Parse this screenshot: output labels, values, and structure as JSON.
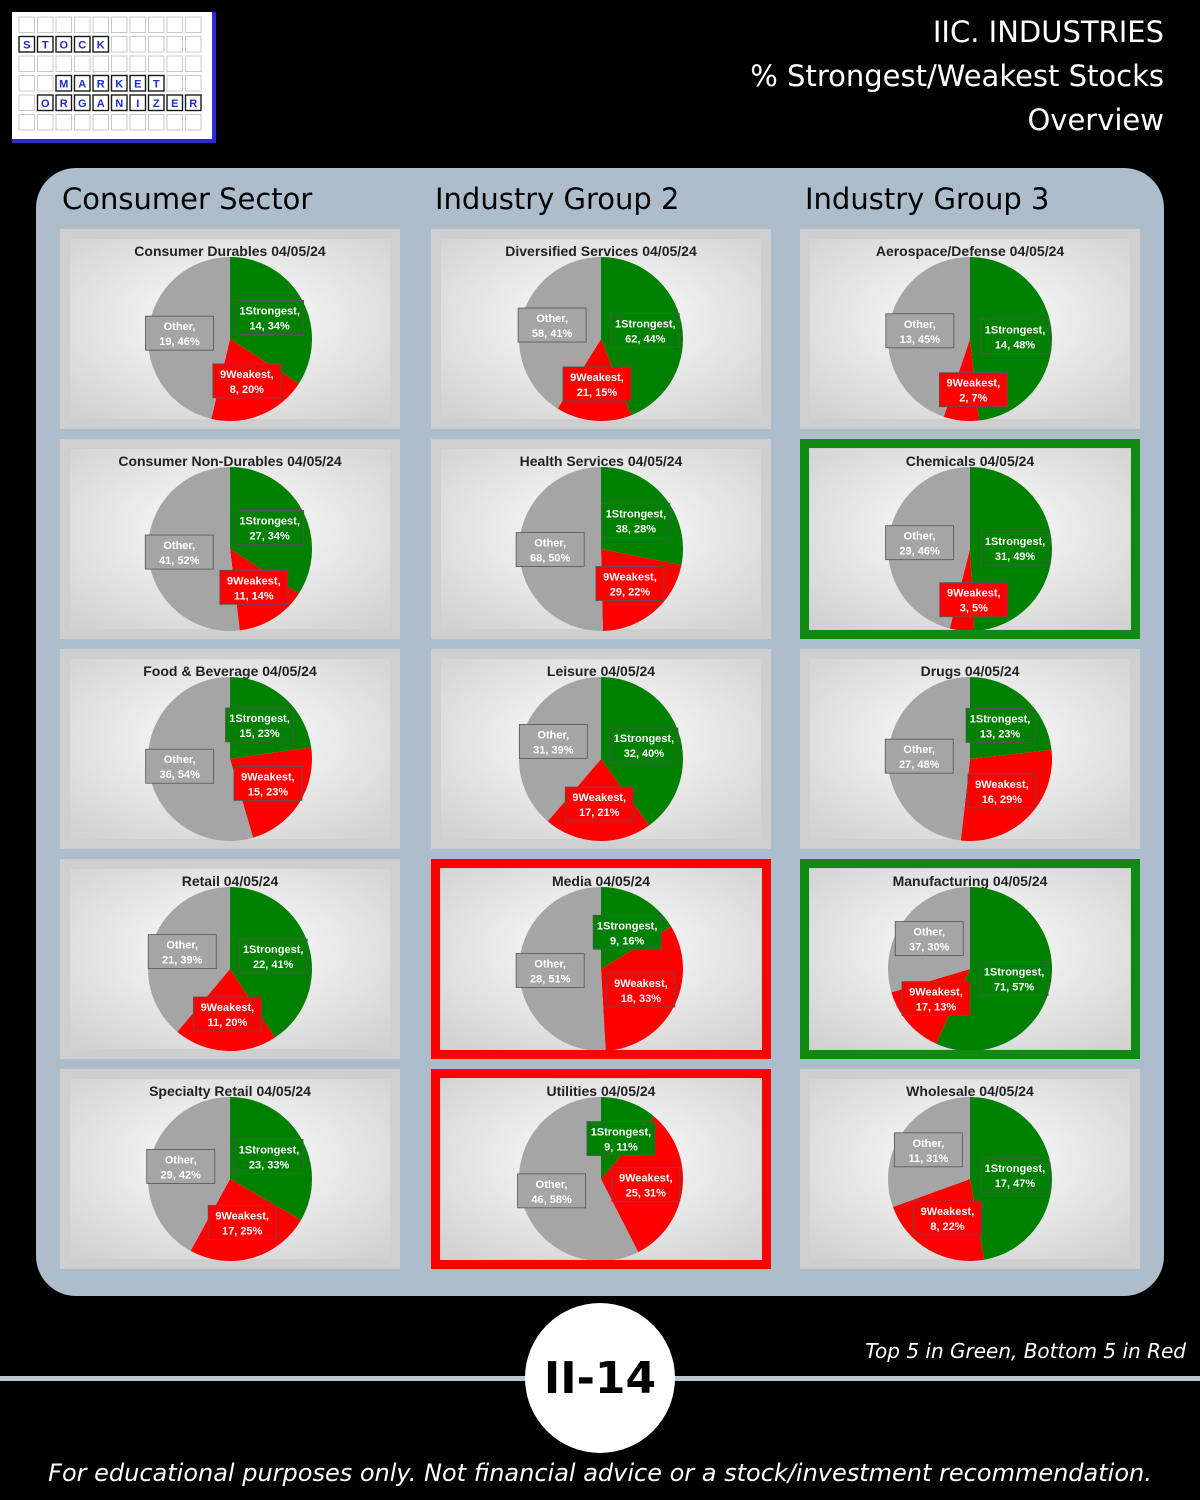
{
  "header": {
    "logo_words": [
      "STOCK",
      "MARKET",
      "ORGANIZER"
    ],
    "title_lines": [
      "IIC. INDUSTRIES",
      "% Strongest/Weakest Stocks",
      "Overview"
    ]
  },
  "colors": {
    "strongest": "#008000",
    "weakest": "#ff0000",
    "other": "#a5a5a5",
    "highlight_top": "#118a11",
    "highlight_bottom": "#ff0000"
  },
  "columns": [
    "Consumer Sector",
    "Industry Group 2",
    "Industry Group 3"
  ],
  "chart_data": [
    {
      "type": "pie",
      "column": 0,
      "row": 0,
      "title": "Consumer Durables 04/05/24",
      "highlight": "none",
      "slices": [
        {
          "label": "1Strongest",
          "count": 14,
          "percent": 34
        },
        {
          "label": "9Weakest",
          "count": 8,
          "percent": 20
        },
        {
          "label": "Other",
          "count": 19,
          "percent": 46
        }
      ]
    },
    {
      "type": "pie",
      "column": 0,
      "row": 1,
      "title": "Consumer Non-Durables 04/05/24",
      "highlight": "none",
      "slices": [
        {
          "label": "1Strongest",
          "count": 27,
          "percent": 34
        },
        {
          "label": "9Weakest",
          "count": 11,
          "percent": 14
        },
        {
          "label": "Other",
          "count": 41,
          "percent": 52
        }
      ]
    },
    {
      "type": "pie",
      "column": 0,
      "row": 2,
      "title": "Food & Beverage 04/05/24",
      "highlight": "none",
      "slices": [
        {
          "label": "1Strongest",
          "count": 15,
          "percent": 23
        },
        {
          "label": "9Weakest",
          "count": 15,
          "percent": 23
        },
        {
          "label": "Other",
          "count": 36,
          "percent": 54
        }
      ]
    },
    {
      "type": "pie",
      "column": 0,
      "row": 3,
      "title": "Retail 04/05/24",
      "highlight": "none",
      "slices": [
        {
          "label": "1Strongest",
          "count": 22,
          "percent": 41
        },
        {
          "label": "9Weakest",
          "count": 11,
          "percent": 20
        },
        {
          "label": "Other",
          "count": 21,
          "percent": 39
        }
      ]
    },
    {
      "type": "pie",
      "column": 0,
      "row": 4,
      "title": "Specialty Retail 04/05/24",
      "highlight": "none",
      "slices": [
        {
          "label": "1Strongest",
          "count": 23,
          "percent": 33
        },
        {
          "label": "9Weakest",
          "count": 17,
          "percent": 25
        },
        {
          "label": "Other",
          "count": 29,
          "percent": 42
        }
      ]
    },
    {
      "type": "pie",
      "column": 1,
      "row": 0,
      "title": "Diversified Services 04/05/24",
      "highlight": "none",
      "slices": [
        {
          "label": "1Strongest",
          "count": 62,
          "percent": 44
        },
        {
          "label": "9Weakest",
          "count": 21,
          "percent": 15
        },
        {
          "label": "Other",
          "count": 58,
          "percent": 41
        }
      ]
    },
    {
      "type": "pie",
      "column": 1,
      "row": 1,
      "title": "Health Services 04/05/24",
      "highlight": "none",
      "slices": [
        {
          "label": "1Strongest",
          "count": 38,
          "percent": 28
        },
        {
          "label": "9Weakest",
          "count": 29,
          "percent": 22
        },
        {
          "label": "Other",
          "count": 68,
          "percent": 50
        }
      ]
    },
    {
      "type": "pie",
      "column": 1,
      "row": 2,
      "title": "Leisure 04/05/24",
      "highlight": "none",
      "slices": [
        {
          "label": "1Strongest",
          "count": 32,
          "percent": 40
        },
        {
          "label": "9Weakest",
          "count": 17,
          "percent": 21
        },
        {
          "label": "Other",
          "count": 31,
          "percent": 39
        }
      ]
    },
    {
      "type": "pie",
      "column": 1,
      "row": 3,
      "title": "Media 04/05/24",
      "highlight": "bottom",
      "slices": [
        {
          "label": "1Strongest",
          "count": 9,
          "percent": 16
        },
        {
          "label": "9Weakest",
          "count": 18,
          "percent": 33
        },
        {
          "label": "Other",
          "count": 28,
          "percent": 51
        }
      ]
    },
    {
      "type": "pie",
      "column": 1,
      "row": 4,
      "title": "Utilities 04/05/24",
      "highlight": "bottom",
      "slices": [
        {
          "label": "1Strongest",
          "count": 9,
          "percent": 11
        },
        {
          "label": "9Weakest",
          "count": 25,
          "percent": 31
        },
        {
          "label": "Other",
          "count": 46,
          "percent": 58
        }
      ]
    },
    {
      "type": "pie",
      "column": 2,
      "row": 0,
      "title": "Aerospace/Defense 04/05/24",
      "highlight": "none",
      "slices": [
        {
          "label": "1Strongest",
          "count": 14,
          "percent": 48
        },
        {
          "label": "9Weakest",
          "count": 2,
          "percent": 7
        },
        {
          "label": "Other",
          "count": 13,
          "percent": 45
        }
      ]
    },
    {
      "type": "pie",
      "column": 2,
      "row": 1,
      "title": "Chemicals 04/05/24",
      "highlight": "top",
      "slices": [
        {
          "label": "1Strongest",
          "count": 31,
          "percent": 49
        },
        {
          "label": "9Weakest",
          "count": 3,
          "percent": 5
        },
        {
          "label": "Other",
          "count": 29,
          "percent": 46
        }
      ]
    },
    {
      "type": "pie",
      "column": 2,
      "row": 2,
      "title": "Drugs 04/05/24",
      "highlight": "none",
      "slices": [
        {
          "label": "1Strongest",
          "count": 13,
          "percent": 23
        },
        {
          "label": "9Weakest",
          "count": 16,
          "percent": 29
        },
        {
          "label": "Other",
          "count": 27,
          "percent": 48
        }
      ]
    },
    {
      "type": "pie",
      "column": 2,
      "row": 3,
      "title": "Manufacturing 04/05/24",
      "highlight": "top",
      "slices": [
        {
          "label": "1Strongest",
          "count": 71,
          "percent": 57
        },
        {
          "label": "9Weakest",
          "count": 17,
          "percent": 13
        },
        {
          "label": "Other",
          "count": 37,
          "percent": 30
        }
      ]
    },
    {
      "type": "pie",
      "column": 2,
      "row": 4,
      "title": "Wholesale 04/05/24",
      "highlight": "none",
      "slices": [
        {
          "label": "1Strongest",
          "count": 17,
          "percent": 47
        },
        {
          "label": "9Weakest",
          "count": 8,
          "percent": 22
        },
        {
          "label": "Other",
          "count": 11,
          "percent": 31
        }
      ]
    }
  ],
  "footer": {
    "page_badge": "II-14",
    "legend_note": "Top 5 in Green, Bottom 5 in Red",
    "disclaimer": "For educational purposes only. Not financial advice or a stock/investment recommendation."
  }
}
